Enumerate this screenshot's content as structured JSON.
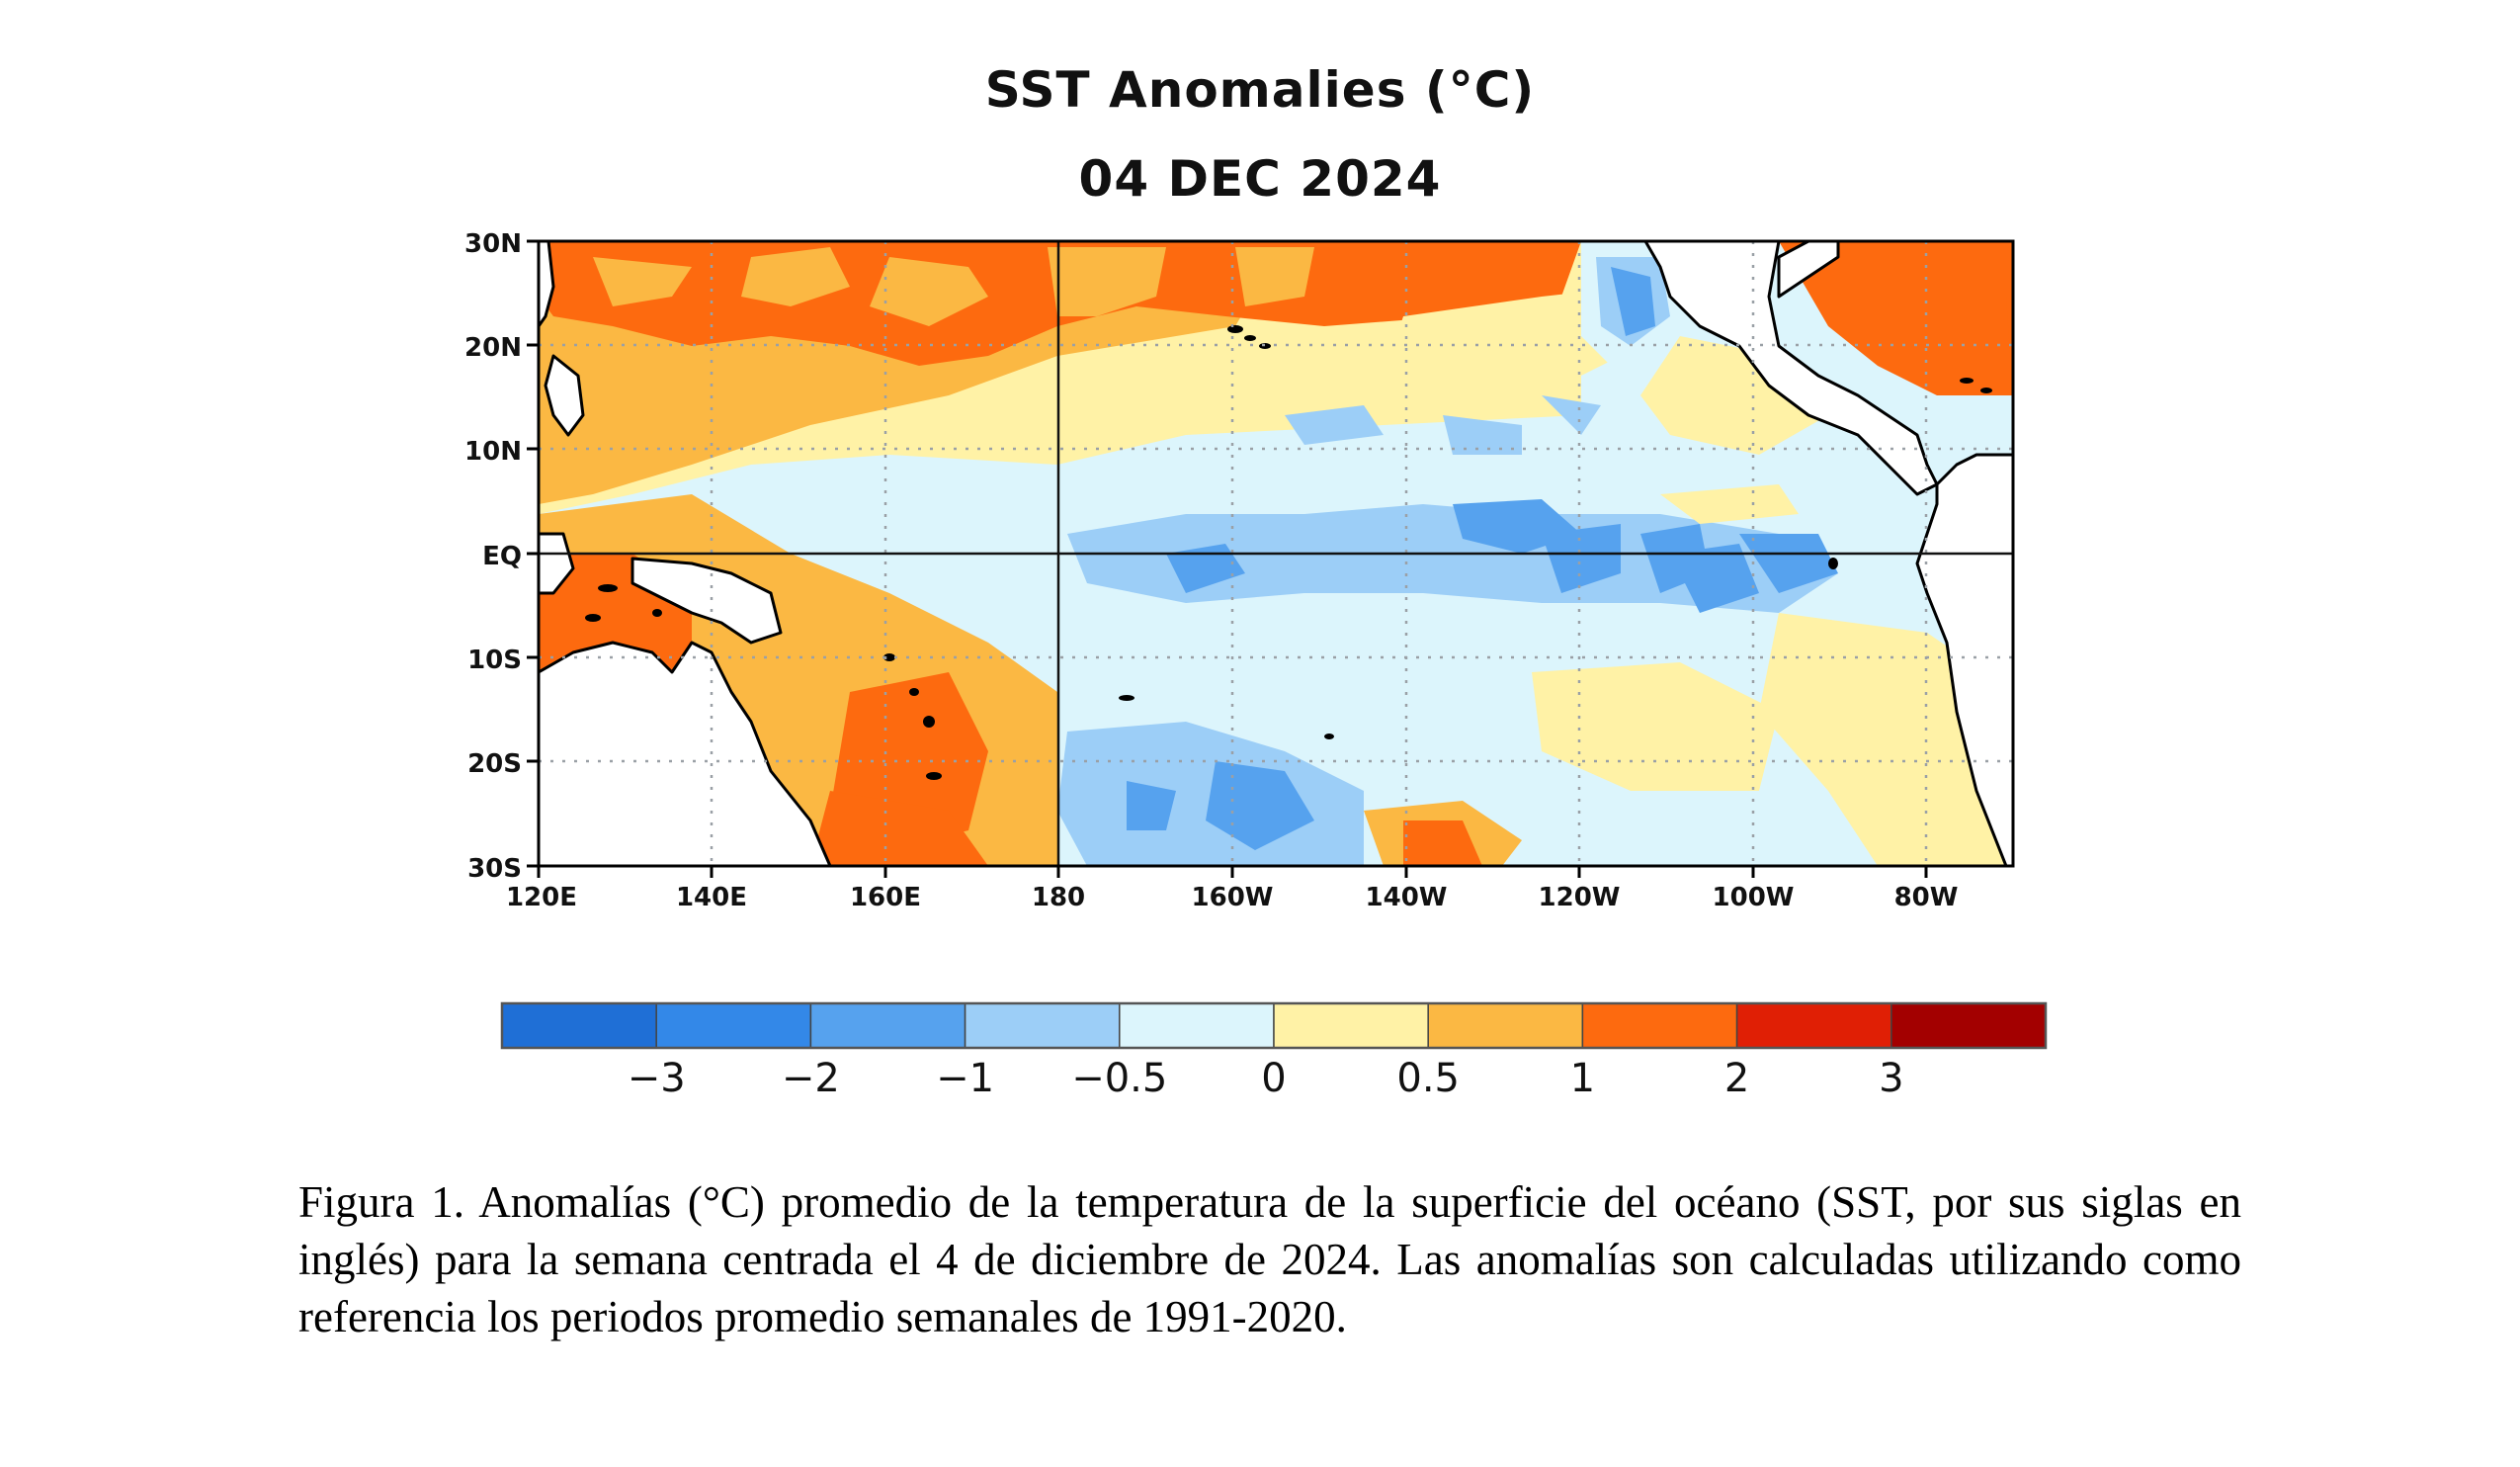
{
  "figure": {
    "title_line1": "SST Anomalies (°C)",
    "title_line2": "04 DEC 2024"
  },
  "map": {
    "lon_ticks": [
      "120E",
      "140E",
      "160E",
      "180",
      "160W",
      "140W",
      "120W",
      "100W",
      "80W"
    ],
    "lat_ticks": [
      "30N",
      "20N",
      "10N",
      "EQ",
      "10S",
      "20S",
      "30S"
    ],
    "extent_lon_east": [
      120,
      290
    ],
    "extent_lat": [
      -30,
      30
    ],
    "gridlines": "dotted",
    "equator_and_dateline": "solid"
  },
  "colorbar": {
    "labels": [
      "−3",
      "−2",
      "−1",
      "−0.5",
      "0",
      "0.5",
      "1",
      "2",
      "3"
    ],
    "colors": [
      "#1f6fd6",
      "#3388e8",
      "#56a2ee",
      "#9ccef7",
      "#dcf5fc",
      "#fff2a6",
      "#fbb843",
      "#fd6a0f",
      "#e01f05",
      "#a30000"
    ]
  },
  "caption": "Figura 1. Anomalías (°C) promedio de la temperatura de la superficie del océano (SST, por sus siglas en inglés) para la semana centrada el 4 de diciembre de 2024. Las anomalías son calculadas utilizando como referencia los periodos promedio semanales de 1991-2020."
}
